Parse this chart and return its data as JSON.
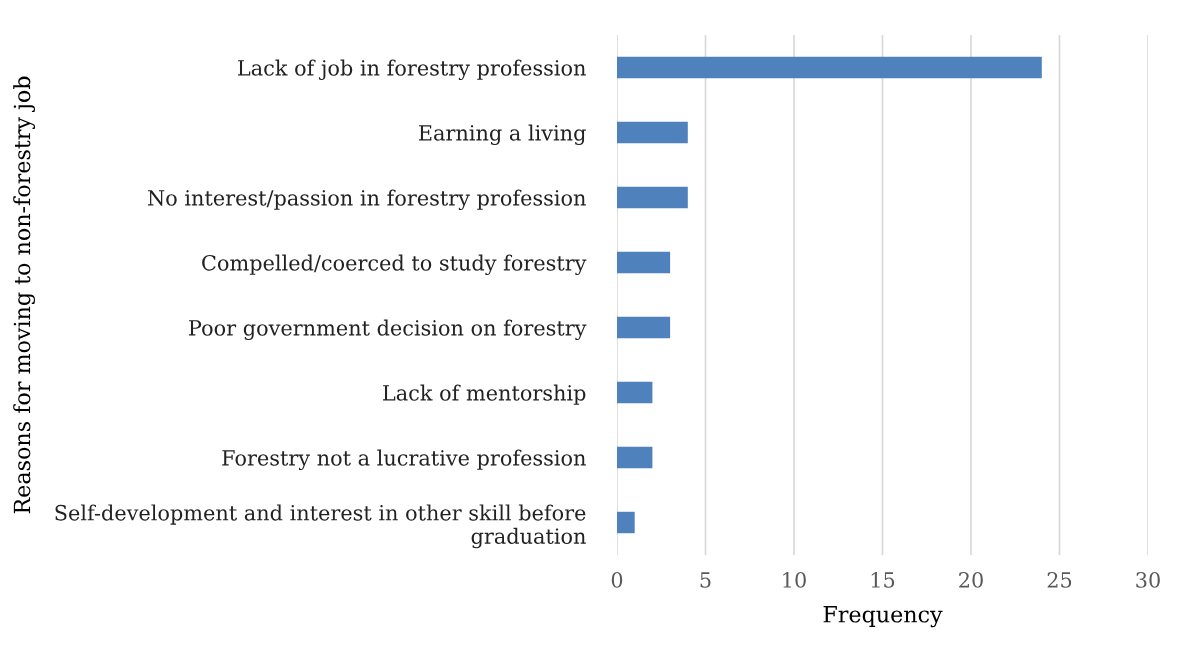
{
  "chart_data": {
    "type": "bar",
    "orientation": "horizontal",
    "xlabel": "Frequency",
    "ylabel": "Reasons for moving to non-forestry job",
    "categories": [
      "Lack of job in forestry profession",
      "Earning a living",
      "No interest/passion in forestry profession",
      "Compelled/coerced to study forestry",
      "Poor government decision on forestry",
      "Lack of mentorship",
      "Forestry not a lucrative profession",
      "Self-development and interest in other skill before\ngraduation"
    ],
    "values": [
      24,
      4,
      4,
      3,
      3,
      2,
      2,
      1
    ],
    "color": "#4f81bd",
    "xlim": [
      0,
      30
    ],
    "xticks": [
      0,
      5,
      10,
      15,
      20,
      25,
      30
    ],
    "grid": "x",
    "legend": false
  }
}
